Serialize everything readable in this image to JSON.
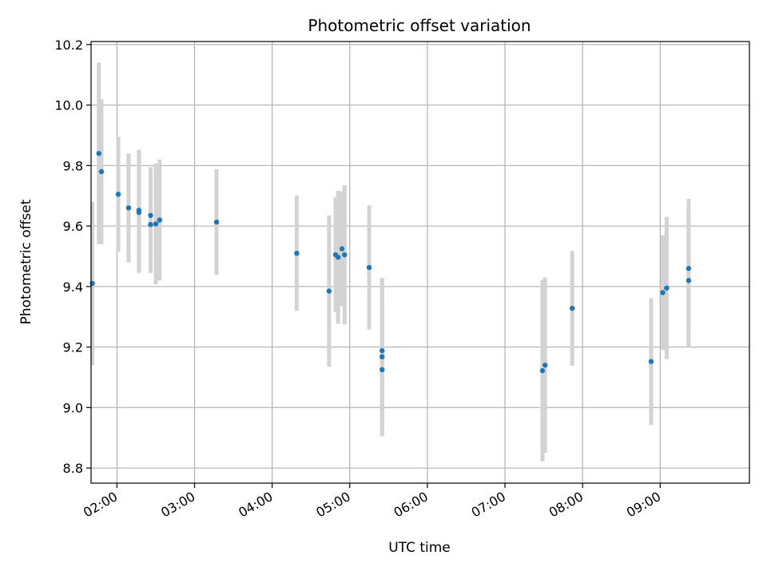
{
  "chart_data": {
    "type": "scatter",
    "title": "Photometric offset variation",
    "xlabel": "UTC time",
    "ylabel": "Photometric offset",
    "x_ticks": [
      "02:00",
      "03:00",
      "04:00",
      "05:00",
      "06:00",
      "07:00",
      "08:00",
      "09:00"
    ],
    "y_ticks": [
      "8.8",
      "9.0",
      "9.2",
      "9.4",
      "9.6",
      "9.8",
      "10.0",
      "10.2"
    ],
    "xlim": [
      "01:40",
      "10:09"
    ],
    "ylim": [
      8.75,
      10.21
    ],
    "grid": true,
    "marker_color": "#1f77b4",
    "errorbar_color": "#d3d3d3",
    "points": [
      {
        "x": "01:41",
        "y": 9.41,
        "yerr": 0.27
      },
      {
        "x": "01:46",
        "y": 9.84,
        "yerr": 0.3
      },
      {
        "x": "01:48",
        "y": 9.78,
        "yerr": 0.24
      },
      {
        "x": "02:01",
        "y": 9.705,
        "yerr": 0.19
      },
      {
        "x": "02:09",
        "y": 9.66,
        "yerr": 0.18
      },
      {
        "x": "02:17",
        "y": 9.652,
        "yerr": 0.2
      },
      {
        "x": "02:17",
        "y": 9.645,
        "yerr": 0.2
      },
      {
        "x": "02:26",
        "y": 9.635,
        "yerr": 0.16
      },
      {
        "x": "02:26",
        "y": 9.605,
        "yerr": 0.16
      },
      {
        "x": "02:30",
        "y": 9.607,
        "yerr": 0.2
      },
      {
        "x": "02:33",
        "y": 9.62,
        "yerr": 0.2
      },
      {
        "x": "03:17",
        "y": 9.613,
        "yerr": 0.175
      },
      {
        "x": "04:19",
        "y": 9.51,
        "yerr": 0.19
      },
      {
        "x": "04:44",
        "y": 9.385,
        "yerr": 0.25
      },
      {
        "x": "04:49",
        "y": 9.505,
        "yerr": 0.19
      },
      {
        "x": "04:51",
        "y": 9.497,
        "yerr": 0.22
      },
      {
        "x": "04:54",
        "y": 9.525,
        "yerr": 0.19
      },
      {
        "x": "04:56",
        "y": 9.505,
        "yerr": 0.23
      },
      {
        "x": "05:15",
        "y": 9.463,
        "yerr": 0.205
      },
      {
        "x": "05:25",
        "y": 9.188,
        "yerr": 0.24
      },
      {
        "x": "05:25",
        "y": 9.168,
        "yerr": 0.26
      },
      {
        "x": "05:25",
        "y": 9.125,
        "yerr": 0.22
      },
      {
        "x": "07:29",
        "y": 9.122,
        "yerr": 0.3
      },
      {
        "x": "07:31",
        "y": 9.14,
        "yerr": 0.29
      },
      {
        "x": "07:52",
        "y": 9.328,
        "yerr": 0.19
      },
      {
        "x": "08:53",
        "y": 9.152,
        "yerr": 0.21
      },
      {
        "x": "09:02",
        "y": 9.38,
        "yerr": 0.19
      },
      {
        "x": "09:05",
        "y": 9.395,
        "yerr": 0.235
      },
      {
        "x": "09:22",
        "y": 9.46,
        "yerr": 0.23
      },
      {
        "x": "09:22",
        "y": 9.42,
        "yerr": 0.22
      }
    ]
  }
}
